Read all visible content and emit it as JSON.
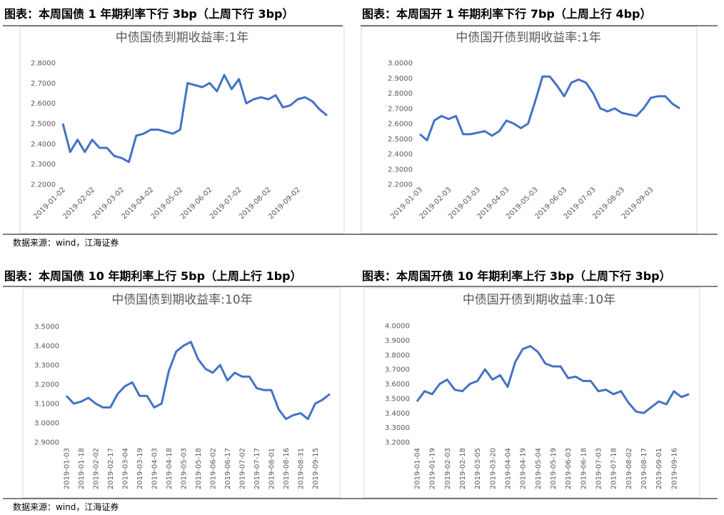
{
  "headings": [
    "图表：本周国债 1 年期利率下行 3bp（上周下行 3bp）",
    "图表：本周国开 1 年期利率下行 7bp（上周上行 4bp）",
    "图表：本周国债 10 年期利率上行 5bp（上周上行 1bp）",
    "图表：本周国开债 10 年期利率上行 3bp（上周下行 3bp）"
  ],
  "sources": [
    "数据来源：wind，江海证券",
    "数据来源：wind，江海证券"
  ],
  "chart_data": [
    {
      "type": "line",
      "title": "中债国债到期收益率:1年",
      "color": "#4472c4",
      "grid": false,
      "categories": [
        "2019-01-02",
        null,
        null,
        null,
        "2019-02-02",
        null,
        null,
        null,
        "2019-03-02",
        null,
        null,
        null,
        "2019-04-02",
        null,
        null,
        null,
        "2019-05-02",
        null,
        null,
        null,
        "2019-06-02",
        null,
        null,
        null,
        "2019-07-02",
        null,
        null,
        null,
        "2019-08-02",
        null,
        null,
        null,
        "2019-09-02",
        null,
        null,
        null,
        null
      ],
      "values": [
        2.5,
        2.36,
        2.42,
        2.36,
        2.42,
        2.38,
        2.38,
        2.34,
        2.33,
        2.31,
        2.44,
        2.45,
        2.47,
        2.47,
        2.46,
        2.45,
        2.47,
        2.7,
        2.69,
        2.68,
        2.7,
        2.66,
        2.74,
        2.67,
        2.72,
        2.6,
        2.62,
        2.63,
        2.62,
        2.64,
        2.58,
        2.59,
        2.62,
        2.63,
        2.61,
        2.57,
        2.54
      ],
      "ylim": [
        2.2,
        2.8
      ],
      "yticks": [
        {
          "value": 2.2,
          "label": "2.2000"
        },
        {
          "value": 2.3,
          "label": "2.3000"
        },
        {
          "value": 2.4,
          "label": "2.4000"
        },
        {
          "value": 2.5,
          "label": "2.5000"
        },
        {
          "value": 2.6,
          "label": "2.6000"
        },
        {
          "value": 2.7,
          "label": "2.7000"
        },
        {
          "value": 2.8,
          "label": "2.8000"
        }
      ]
    },
    {
      "type": "line",
      "title": "中债国开债到期收益率:1年",
      "color": "#4472c4",
      "grid": false,
      "categories": [
        "2019-01-03",
        null,
        null,
        null,
        "2019-02-03",
        null,
        null,
        null,
        "2019-03-03",
        null,
        null,
        null,
        "2019-04-03",
        null,
        null,
        null,
        "2019-05-03",
        null,
        null,
        null,
        "2019-06-03",
        null,
        null,
        null,
        "2019-07-03",
        null,
        null,
        null,
        "2019-08-03",
        null,
        null,
        null,
        "2019-09-03",
        null,
        null,
        null,
        null
      ],
      "values": [
        2.53,
        2.49,
        2.62,
        2.65,
        2.63,
        2.65,
        2.53,
        2.53,
        2.54,
        2.55,
        2.52,
        2.55,
        2.62,
        2.6,
        2.57,
        2.6,
        2.75,
        2.91,
        2.91,
        2.85,
        2.78,
        2.87,
        2.89,
        2.87,
        2.8,
        2.7,
        2.68,
        2.7,
        2.67,
        2.66,
        2.65,
        2.7,
        2.77,
        2.78,
        2.78,
        2.73,
        2.7
      ],
      "ylim": [
        2.2,
        3.0
      ],
      "yticks": [
        {
          "value": 2.2,
          "label": "2.2000"
        },
        {
          "value": 2.3,
          "label": "2.3000"
        },
        {
          "value": 2.4,
          "label": "2.4000"
        },
        {
          "value": 2.5,
          "label": "2.5000"
        },
        {
          "value": 2.6,
          "label": "2.6000"
        },
        {
          "value": 2.7,
          "label": "2.7000"
        },
        {
          "value": 2.8,
          "label": "2.8000"
        },
        {
          "value": 2.9,
          "label": "2.9000"
        },
        {
          "value": 3.0,
          "label": "3.0000"
        }
      ]
    },
    {
      "type": "line",
      "title": "中债国债到期收益率:10年",
      "color": "#4472c4",
      "grid": false,
      "categories": [
        "2019-01-03",
        null,
        "2019-01-18",
        null,
        "2019-02-02",
        null,
        "2019-02-17",
        null,
        "2019-03-04",
        null,
        "2019-03-19",
        null,
        "2019-04-03",
        null,
        "2019-04-18",
        null,
        "2019-05-03",
        null,
        "2019-05-18",
        null,
        "2019-06-02",
        null,
        "2019-06-17",
        null,
        "2019-07-02",
        null,
        "2019-07-17",
        null,
        "2019-08-01",
        null,
        "2019-08-16",
        null,
        "2019-08-31",
        null,
        "2019-09-15",
        null,
        null
      ],
      "values": [
        3.14,
        3.1,
        3.11,
        3.13,
        3.1,
        3.08,
        3.08,
        3.15,
        3.19,
        3.21,
        3.14,
        3.14,
        3.08,
        3.1,
        3.27,
        3.37,
        3.4,
        3.42,
        3.33,
        3.28,
        3.26,
        3.3,
        3.22,
        3.26,
        3.24,
        3.24,
        3.18,
        3.17,
        3.17,
        3.07,
        3.02,
        3.04,
        3.05,
        3.02,
        3.1,
        3.12,
        3.15
      ],
      "ylim": [
        2.9,
        3.5
      ],
      "yticks": [
        {
          "value": 2.9,
          "label": "2.9000"
        },
        {
          "value": 3.0,
          "label": "3.0000"
        },
        {
          "value": 3.1,
          "label": "3.1000"
        },
        {
          "value": 3.2,
          "label": "3.2000"
        },
        {
          "value": 3.3,
          "label": "3.3000"
        },
        {
          "value": 3.4,
          "label": "3.4000"
        },
        {
          "value": 3.5,
          "label": "3.5000"
        }
      ]
    },
    {
      "type": "line",
      "title": "中债国开债到期收益率:10年",
      "color": "#4472c4",
      "grid": false,
      "categories": [
        "2019-01-04",
        null,
        "2019-01-19",
        null,
        "2019-02-03",
        null,
        "2019-02-18",
        null,
        "2019-03-05",
        null,
        "2019-03-20",
        null,
        "2019-04-04",
        null,
        "2019-04-19",
        null,
        "2019-05-04",
        null,
        "2019-05-19",
        null,
        "2019-06-03",
        null,
        "2019-06-18",
        null,
        "2019-07-03",
        null,
        "2019-07-18",
        null,
        "2019-08-02",
        null,
        "2019-08-17",
        null,
        "2019-09-01",
        null,
        "2019-09-16",
        null,
        null
      ],
      "values": [
        3.48,
        3.55,
        3.53,
        3.6,
        3.63,
        3.56,
        3.55,
        3.6,
        3.62,
        3.7,
        3.63,
        3.66,
        3.58,
        3.75,
        3.84,
        3.86,
        3.82,
        3.74,
        3.72,
        3.72,
        3.64,
        3.65,
        3.62,
        3.62,
        3.55,
        3.56,
        3.53,
        3.55,
        3.47,
        3.41,
        3.4,
        3.44,
        3.48,
        3.46,
        3.55,
        3.51,
        3.53
      ],
      "ylim": [
        3.2,
        4.0
      ],
      "yticks": [
        {
          "value": 3.2,
          "label": "3.2000"
        },
        {
          "value": 3.3,
          "label": "3.3000"
        },
        {
          "value": 3.4,
          "label": "3.4000"
        },
        {
          "value": 3.5,
          "label": "3.5000"
        },
        {
          "value": 3.6,
          "label": "3.6000"
        },
        {
          "value": 3.7,
          "label": "3.7000"
        },
        {
          "value": 3.8,
          "label": "3.8000"
        },
        {
          "value": 3.9,
          "label": "3.9000"
        },
        {
          "value": 4.0,
          "label": "4.0000"
        }
      ]
    }
  ]
}
